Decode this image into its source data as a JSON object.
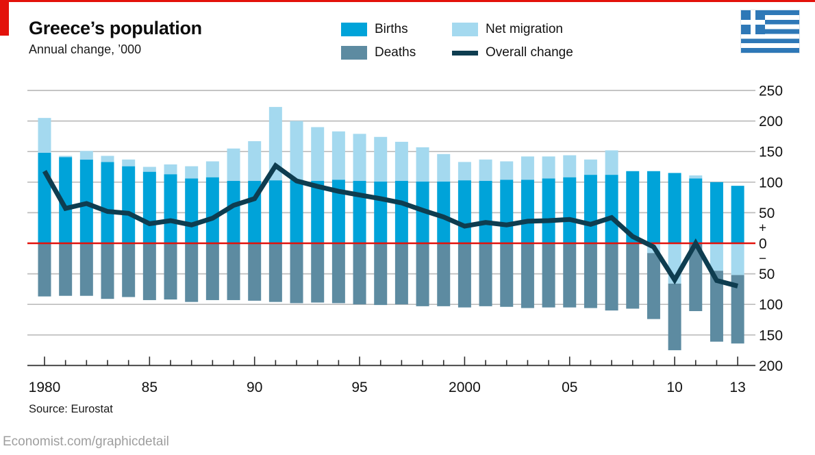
{
  "header": {
    "title": "Greece’s population",
    "subtitle": "Annual change, ’000"
  },
  "legend": [
    {
      "label": "Births",
      "color": "#00a3d9",
      "shape": "box"
    },
    {
      "label": "Net migration",
      "color": "#a4d9ef",
      "shape": "box"
    },
    {
      "label": "Deaths",
      "color": "#5d8ba1",
      "shape": "box"
    },
    {
      "label": "Overall change",
      "color": "#0e3d50",
      "shape": "line"
    }
  ],
  "footer": {
    "source": "Source: Eurostat",
    "credit": "Economist.com/graphicdetail"
  },
  "colors": {
    "background": "#ffffff",
    "accent_red": "#e3120b",
    "births_blue": "#00a3d9",
    "migration_light_blue": "#a4d9ef",
    "deaths_slate": "#5d8ba1",
    "overall_navy": "#0e3d50",
    "gridline_gray": "#bcbcbc",
    "axis_dark": "#2b2b2b",
    "flag_blue": "#2e78b7"
  },
  "chart_data": {
    "type": "bar",
    "title": "Greece’s population",
    "subtitle": "Annual change, ’000",
    "legend_position": "top",
    "grid": true,
    "zero_line_color": "#e3120b",
    "x": [
      1980,
      1981,
      1982,
      1983,
      1984,
      1985,
      1986,
      1987,
      1988,
      1989,
      1990,
      1991,
      1992,
      1993,
      1994,
      1995,
      1996,
      1997,
      1998,
      1999,
      2000,
      2001,
      2002,
      2003,
      2004,
      2005,
      2006,
      2007,
      2008,
      2009,
      2010,
      2011,
      2012,
      2013
    ],
    "series": [
      {
        "name": "Births",
        "type": "bar",
        "stack": "positive",
        "color": "#00a3d9",
        "values": [
          148,
          141,
          137,
          133,
          126,
          117,
          113,
          106,
          108,
          102,
          102,
          103,
          104,
          102,
          104,
          102,
          101,
          102,
          101,
          101,
          103,
          102,
          104,
          104,
          106,
          108,
          112,
          112,
          118,
          118,
          115,
          106,
          100,
          94
        ]
      },
      {
        "name": "Deaths",
        "type": "bar",
        "stack": "negative",
        "color": "#5d8ba1",
        "values": [
          -87,
          -86,
          -86,
          -91,
          -88,
          -93,
          -92,
          -96,
          -93,
          -93,
          -94,
          -96,
          -98,
          -97,
          -98,
          -100,
          -101,
          -100,
          -103,
          -103,
          -105,
          -103,
          -104,
          -106,
          -105,
          -105,
          -106,
          -110,
          -107,
          -108,
          -109,
          -111,
          -116,
          -112
        ]
      },
      {
        "name": "Net migration",
        "type": "bar",
        "stack": "signed",
        "color": "#a4d9ef",
        "values": [
          57,
          2,
          14,
          10,
          11,
          8,
          16,
          20,
          26,
          53,
          65,
          120,
          96,
          88,
          79,
          77,
          73,
          64,
          56,
          45,
          30,
          35,
          30,
          38,
          36,
          36,
          25,
          40,
          0,
          -16,
          -66,
          5,
          -45,
          -52
        ]
      },
      {
        "name": "Overall change",
        "type": "line",
        "color": "#0e3d50",
        "values": [
          118,
          57,
          65,
          52,
          49,
          32,
          37,
          30,
          41,
          62,
          73,
          127,
          102,
          93,
          85,
          79,
          73,
          66,
          54,
          43,
          28,
          34,
          30,
          36,
          37,
          39,
          31,
          42,
          11,
          -6,
          -60,
          0,
          -61,
          -70
        ]
      }
    ],
    "x_axis": {
      "tick_labels": [
        {
          "year": 1980,
          "label": "1980"
        },
        {
          "year": 1985,
          "label": "85"
        },
        {
          "year": 1990,
          "label": "90"
        },
        {
          "year": 1995,
          "label": "95"
        },
        {
          "year": 2000,
          "label": "2000"
        },
        {
          "year": 2005,
          "label": "05"
        },
        {
          "year": 2010,
          "label": "10"
        },
        {
          "year": 2013,
          "label": "13"
        }
      ],
      "major_tick_years": [
        1980,
        1985,
        1990,
        1995,
        2000,
        2005,
        2010,
        2013
      ]
    },
    "y_axis": {
      "unit": "’000",
      "ylim": [
        -200,
        250
      ],
      "gridlines": [
        250,
        200,
        150,
        100,
        50,
        0,
        -50,
        -100,
        -150,
        -200
      ],
      "labels": [
        {
          "text": "250",
          "value": 250
        },
        {
          "text": "200",
          "value": 200
        },
        {
          "text": "150",
          "value": 150
        },
        {
          "text": "100",
          "value": 100
        },
        {
          "text": "50",
          "value": 50
        },
        {
          "text": "+",
          "value": 25
        },
        {
          "text": "0",
          "value": 0
        },
        {
          "text": "−",
          "value": -25
        },
        {
          "text": "50",
          "value": -50
        },
        {
          "text": "100",
          "value": -100
        },
        {
          "text": "150",
          "value": -150
        },
        {
          "text": "200",
          "value": -200
        }
      ]
    }
  }
}
